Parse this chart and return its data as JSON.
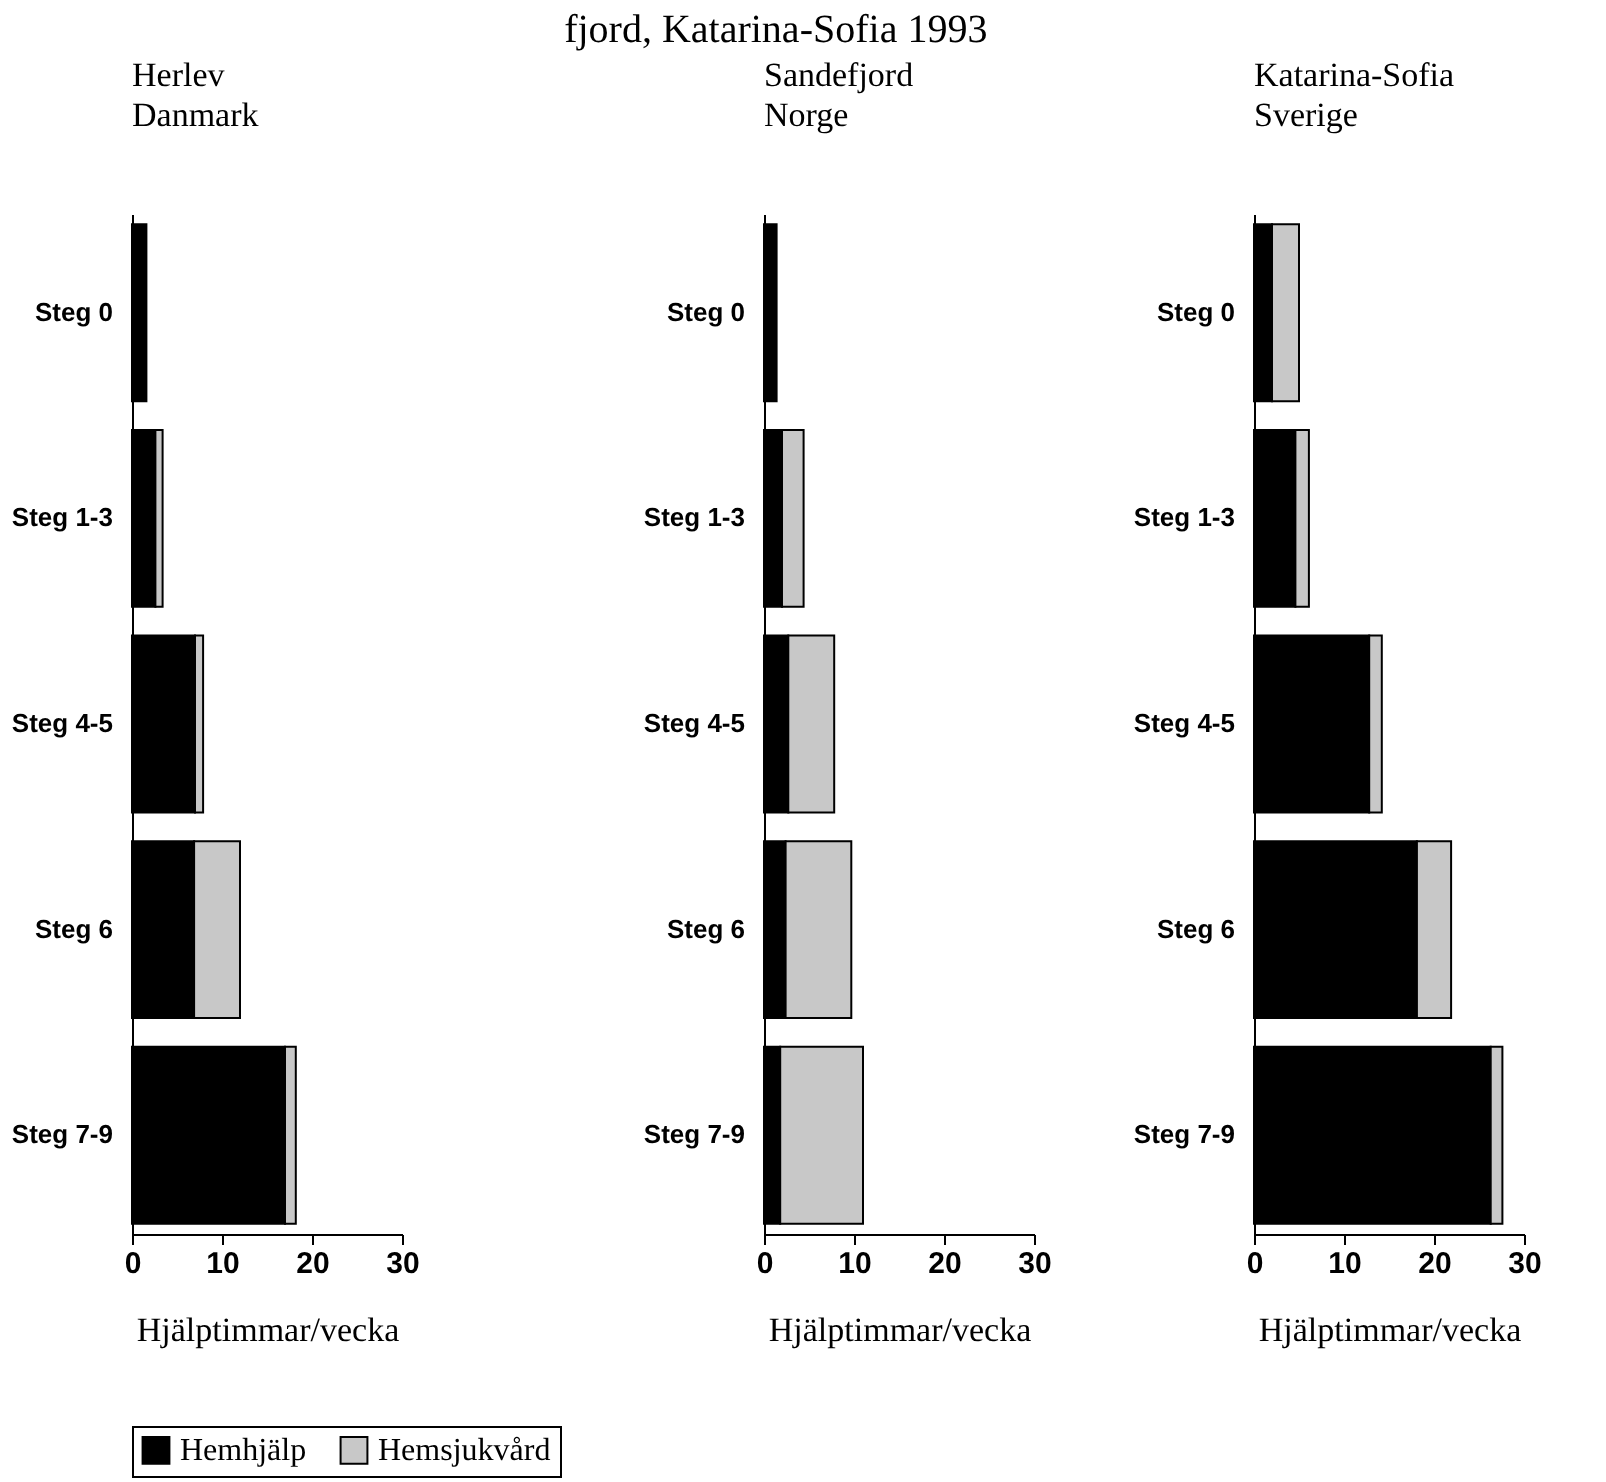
{
  "chart_data": [
    {
      "type": "bar",
      "orientation": "horizontal",
      "stacked": true,
      "title": "Herlev",
      "subtitle": "Danmark",
      "xlabel": "Hjälptimmar/vecka",
      "annotations": [
        "fjord, Katarina-Sofia 1993"
      ],
      "categories": [
        "Steg 0",
        "Steg 1-3",
        "Steg 4-5",
        "Steg 6",
        "Steg 7-9"
      ],
      "series": [
        {
          "name": "Hemhjälp",
          "color": "#000000",
          "values": [
            1.6,
            2.6,
            7.0,
            6.9,
            17.0
          ]
        },
        {
          "name": "Hemsjukvård",
          "color": "#c8c8c8",
          "values": [
            null,
            0.8,
            0.9,
            5.1,
            1.2
          ]
        }
      ],
      "xlim": [
        0,
        30
      ],
      "xticks": [
        0,
        10,
        20,
        30
      ],
      "grid": false,
      "legend": "bottom"
    },
    {
      "type": "bar",
      "orientation": "horizontal",
      "stacked": true,
      "title": "Sandefjord",
      "subtitle": "Norge",
      "xlabel": "Hjälptimmar/vecka",
      "categories": [
        "Steg 0",
        "Steg 1-3",
        "Steg 4-5",
        "Steg 6",
        "Steg 7-9"
      ],
      "series": [
        {
          "color": "#000000",
          "values": [
            1.4,
            2.0,
            2.7,
            2.4,
            1.8
          ]
        },
        {
          "color": "#c8c8c8",
          "values": [
            null,
            2.4,
            5.1,
            7.3,
            9.2
          ]
        }
      ],
      "xlim": [
        0,
        30
      ],
      "xticks": [
        0,
        10,
        20,
        30
      ],
      "grid": false
    },
    {
      "type": "bar",
      "orientation": "horizontal",
      "stacked": true,
      "title": "Katarina-Sofia",
      "subtitle": "Sverige",
      "xlabel": "Hjälptimmar/vecka",
      "categories": [
        "Steg 0",
        "Steg 1-3",
        "Steg 4-5",
        "Steg 6",
        "Steg 7-9"
      ],
      "series": [
        {
          "color": "#000000",
          "values": [
            2.0,
            4.6,
            12.8,
            18.1,
            26.3
          ]
        },
        {
          "color": "#c8c8c8",
          "values": [
            3.0,
            1.5,
            1.4,
            3.8,
            1.3
          ]
        }
      ],
      "xlim": [
        0,
        30
      ],
      "xticks": [
        0,
        10,
        20,
        30
      ],
      "grid": false
    }
  ]
}
